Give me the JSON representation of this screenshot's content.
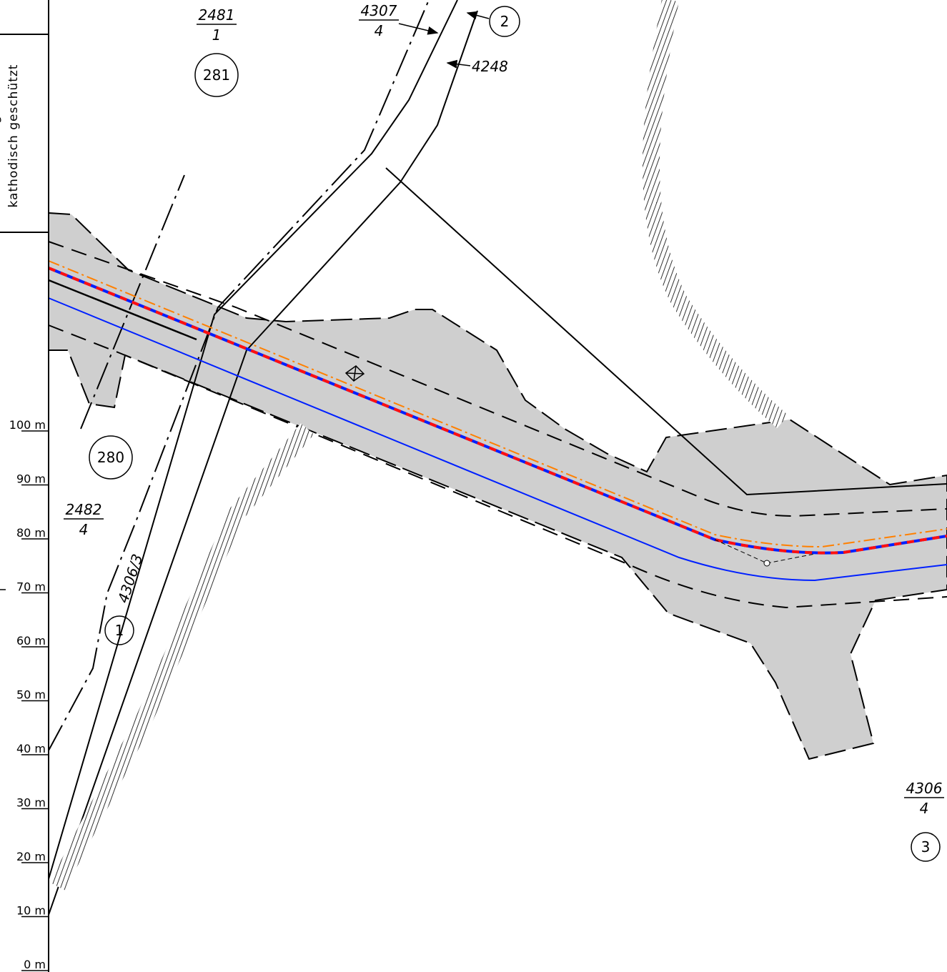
{
  "note_box": {
    "lines": [
      "Die Leitung ist",
      "kathodisch geschützt"
    ]
  },
  "parcels": [
    {
      "number": "2481",
      "sub": "1"
    },
    {
      "number": "4307",
      "sub": "4"
    },
    {
      "number": "2482",
      "sub": "4"
    },
    {
      "number": "4306",
      "sub": "4"
    }
  ],
  "annotations": [
    "4248",
    "4306/3"
  ],
  "markers": [
    "281",
    "280",
    "2",
    "1",
    "3"
  ],
  "scale": {
    "labels": [
      "100 m",
      "90 m",
      "80 m",
      "70 m",
      "60 m",
      "50 m",
      "40 m",
      "30 m",
      "20 m",
      "10 m",
      "0 m"
    ]
  }
}
